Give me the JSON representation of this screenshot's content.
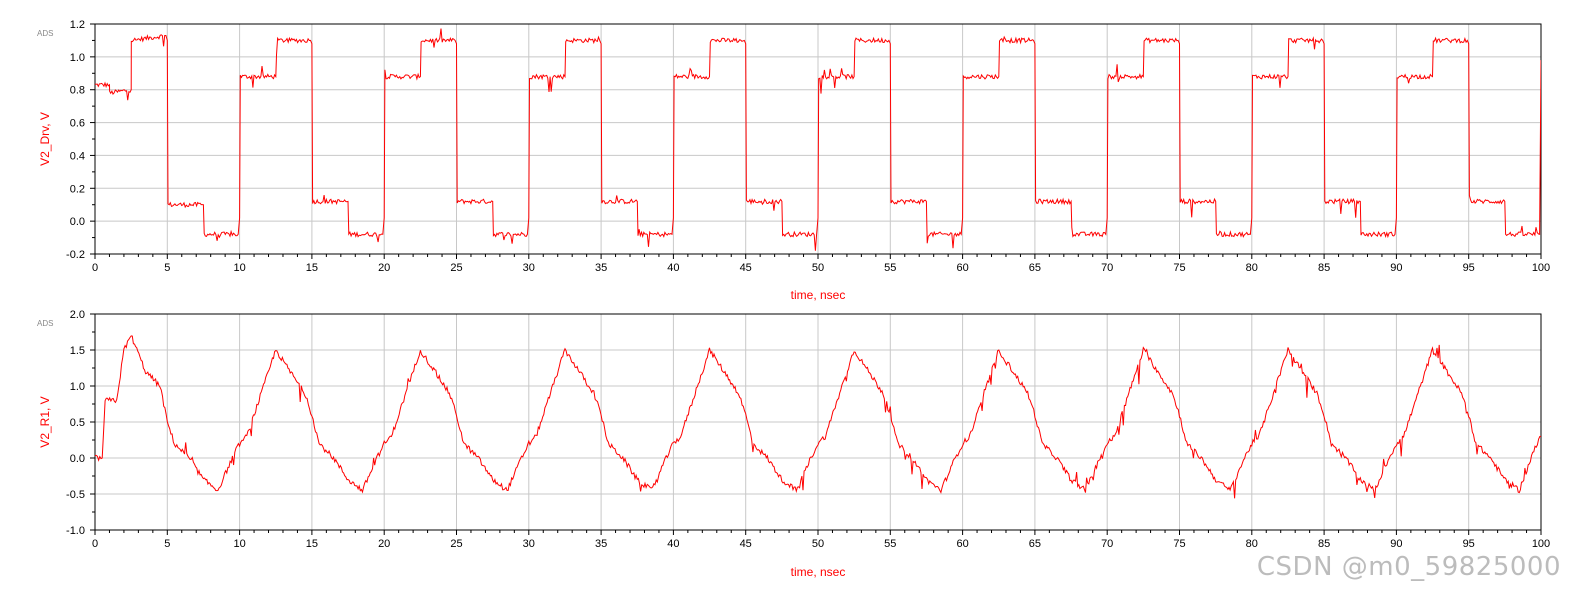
{
  "watermark": "CSDN @m0_59825000",
  "colors": {
    "trace": "#ff0000",
    "grid": "#c8c8c8",
    "frame": "#000000",
    "label": "#ff0000",
    "tick": "#000000",
    "ads": "#888888"
  },
  "chart_data": [
    {
      "type": "line",
      "brand_tag": "ADS",
      "xlabel": "time, nsec",
      "ylabel": "V2_Drv, V",
      "xlim": [
        0,
        100
      ],
      "ylim": [
        -0.2,
        1.2
      ],
      "xticks": [
        0,
        5,
        10,
        15,
        20,
        25,
        30,
        35,
        40,
        45,
        50,
        55,
        60,
        65,
        70,
        75,
        80,
        85,
        90,
        95,
        100
      ],
      "yticks": [
        -0.2,
        0.0,
        0.2,
        0.4,
        0.6,
        0.8,
        1.0,
        1.2
      ],
      "ytick_labels": [
        "-0.2",
        "0.0",
        "0.2",
        "0.4",
        "0.6",
        "0.8",
        "1.0",
        "1.2"
      ],
      "grid": true,
      "series": [
        {
          "color": "#ff0000",
          "x": [
            0,
            1.0,
            1.01,
            2.5,
            2.51,
            4.9,
            5.0,
            5.05,
            7.5,
            7.55,
            9.9,
            10.0,
            10.05,
            12.5,
            12.55,
            14.9,
            15.0,
            15.05,
            17.5,
            17.55,
            19.9,
            20.0,
            20.05,
            22.5,
            22.55,
            24.9,
            25.0,
            25.05,
            27.5,
            27.55,
            29.9,
            30.0,
            30.05,
            32.5,
            32.55,
            34.9,
            35.0,
            35.05,
            37.5,
            37.55,
            39.9,
            40.0,
            40.05,
            42.5,
            42.55,
            44.9,
            45.0,
            45.05,
            47.5,
            47.55,
            49.9,
            50.0,
            50.05,
            52.5,
            52.55,
            54.9,
            55.0,
            55.05,
            57.5,
            57.55,
            59.9,
            60.0,
            60.05,
            62.5,
            62.55,
            64.9,
            65.0,
            65.05,
            67.5,
            67.55,
            69.9,
            70.0,
            70.05,
            72.5,
            72.55,
            74.9,
            75.0,
            75.05,
            77.5,
            77.55,
            79.9,
            80.0,
            80.05,
            82.5,
            82.55,
            84.9,
            85.0,
            85.05,
            87.5,
            87.55,
            89.9,
            90.0,
            90.05,
            92.5,
            92.55,
            94.9,
            95.0,
            95.05,
            97.5,
            97.55,
            99.9,
            100
          ],
          "y": [
            0.83,
            0.83,
            0.78,
            0.8,
            1.1,
            1.13,
            1.1,
            0.1,
            0.1,
            -0.08,
            -0.08,
            0.02,
            0.88,
            0.88,
            1.1,
            1.1,
            1.08,
            0.12,
            0.12,
            -0.08,
            -0.08,
            0.02,
            0.88,
            0.88,
            1.1,
            1.1,
            1.08,
            0.12,
            0.12,
            -0.08,
            -0.08,
            0.02,
            0.88,
            0.88,
            1.1,
            1.1,
            1.08,
            0.12,
            0.12,
            -0.08,
            -0.08,
            0.02,
            0.88,
            0.88,
            1.1,
            1.1,
            1.08,
            0.12,
            0.12,
            -0.08,
            -0.08,
            0.02,
            0.88,
            0.88,
            1.1,
            1.1,
            1.08,
            0.12,
            0.12,
            -0.08,
            -0.08,
            0.02,
            0.88,
            0.88,
            1.1,
            1.1,
            1.08,
            0.12,
            0.12,
            -0.08,
            -0.08,
            0.02,
            0.88,
            0.88,
            1.1,
            1.1,
            1.08,
            0.12,
            0.12,
            -0.08,
            -0.08,
            0.02,
            0.88,
            0.88,
            1.1,
            1.1,
            1.08,
            0.12,
            0.12,
            -0.08,
            -0.08,
            0.02,
            0.88,
            0.88,
            1.1,
            1.1,
            1.08,
            0.12,
            0.12,
            -0.08,
            -0.08,
            0.98
          ]
        }
      ]
    },
    {
      "type": "line",
      "brand_tag": "ADS",
      "xlabel": "time, nsec",
      "ylabel": "V2_R1, V",
      "xlim": [
        0,
        100
      ],
      "ylim": [
        -1.0,
        2.0
      ],
      "xticks": [
        0,
        5,
        10,
        15,
        20,
        25,
        30,
        35,
        40,
        45,
        50,
        55,
        60,
        65,
        70,
        75,
        80,
        85,
        90,
        95,
        100
      ],
      "yticks": [
        -1.0,
        -0.5,
        0.0,
        0.5,
        1.0,
        1.5,
        2.0
      ],
      "ytick_labels": [
        "-1.0",
        "-0.5",
        "0.0",
        "0.5",
        "1.0",
        "1.5",
        "2.0"
      ],
      "grid": true,
      "series": [
        {
          "color": "#ff0000",
          "x": [
            0,
            0.5,
            0.7,
            1.5,
            2.0,
            2.5,
            3.5,
            4.5,
            5.0,
            5.5,
            6.5,
            7.5,
            8.5,
            9.5,
            10.0,
            10.5,
            11.5,
            12.5,
            13.5,
            14.5,
            15.0,
            15.5,
            16.5,
            17.5,
            18.5,
            19.5,
            20.0,
            20.5,
            21.5,
            22.5,
            23.5,
            24.5,
            25.0,
            25.5,
            26.5,
            27.5,
            28.5,
            29.5,
            30.0,
            30.5,
            31.5,
            32.5,
            33.5,
            34.5,
            35.0,
            35.5,
            36.5,
            37.5,
            38.5,
            39.5,
            40.0,
            40.5,
            41.5,
            42.5,
            43.5,
            44.5,
            45.0,
            45.5,
            46.5,
            47.5,
            48.5,
            49.5,
            50.0,
            50.5,
            51.5,
            52.5,
            53.5,
            54.5,
            55.0,
            55.5,
            56.5,
            57.5,
            58.5,
            59.5,
            60.0,
            60.5,
            61.5,
            62.5,
            63.5,
            64.5,
            65.0,
            65.5,
            66.5,
            67.5,
            68.5,
            69.5,
            70.0,
            70.5,
            71.5,
            72.5,
            73.5,
            74.5,
            75.0,
            75.5,
            76.5,
            77.5,
            78.5,
            79.5,
            80.0,
            80.5,
            81.5,
            82.5,
            83.5,
            84.5,
            85.0,
            85.5,
            86.5,
            87.5,
            88.5,
            89.5,
            90.0,
            90.5,
            91.5,
            92.5,
            93.5,
            94.5,
            95.0,
            95.5,
            96.5,
            97.5,
            98.5,
            99.5,
            100
          ],
          "y": [
            0.0,
            0.0,
            0.8,
            0.8,
            1.5,
            1.7,
            1.2,
            1.0,
            0.5,
            0.2,
            0.0,
            -0.3,
            -0.45,
            0.0,
            0.2,
            0.3,
            0.9,
            1.5,
            1.2,
            0.9,
            0.6,
            0.2,
            0.0,
            -0.3,
            -0.45,
            0.0,
            0.2,
            0.3,
            0.9,
            1.5,
            1.2,
            0.9,
            0.6,
            0.2,
            0.0,
            -0.3,
            -0.45,
            0.0,
            0.2,
            0.3,
            0.9,
            1.5,
            1.2,
            0.9,
            0.6,
            0.2,
            0.0,
            -0.3,
            -0.45,
            0.0,
            0.2,
            0.3,
            0.9,
            1.5,
            1.2,
            0.9,
            0.6,
            0.2,
            0.0,
            -0.3,
            -0.45,
            0.0,
            0.2,
            0.3,
            0.9,
            1.5,
            1.2,
            0.9,
            0.6,
            0.2,
            0.0,
            -0.3,
            -0.45,
            0.0,
            0.2,
            0.3,
            0.9,
            1.5,
            1.2,
            0.9,
            0.6,
            0.2,
            0.0,
            -0.3,
            -0.45,
            0.0,
            0.2,
            0.3,
            0.9,
            1.5,
            1.2,
            0.9,
            0.6,
            0.2,
            0.0,
            -0.3,
            -0.45,
            0.0,
            0.2,
            0.3,
            0.9,
            1.5,
            1.2,
            0.9,
            0.6,
            0.2,
            0.0,
            -0.3,
            -0.45,
            0.0,
            0.2,
            0.3,
            0.9,
            1.5,
            1.2,
            0.9,
            0.6,
            0.2,
            0.0,
            -0.3,
            -0.45,
            0.1,
            0.3
          ]
        }
      ]
    }
  ]
}
